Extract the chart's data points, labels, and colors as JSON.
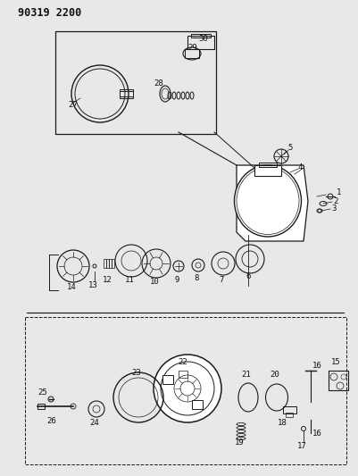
{
  "title": "90319 2200",
  "bg_color": "#e8e8e8",
  "line_color": "#1a1a1a",
  "label_color": "#111111",
  "figsize": [
    4.01,
    5.33
  ],
  "dpi": 100
}
